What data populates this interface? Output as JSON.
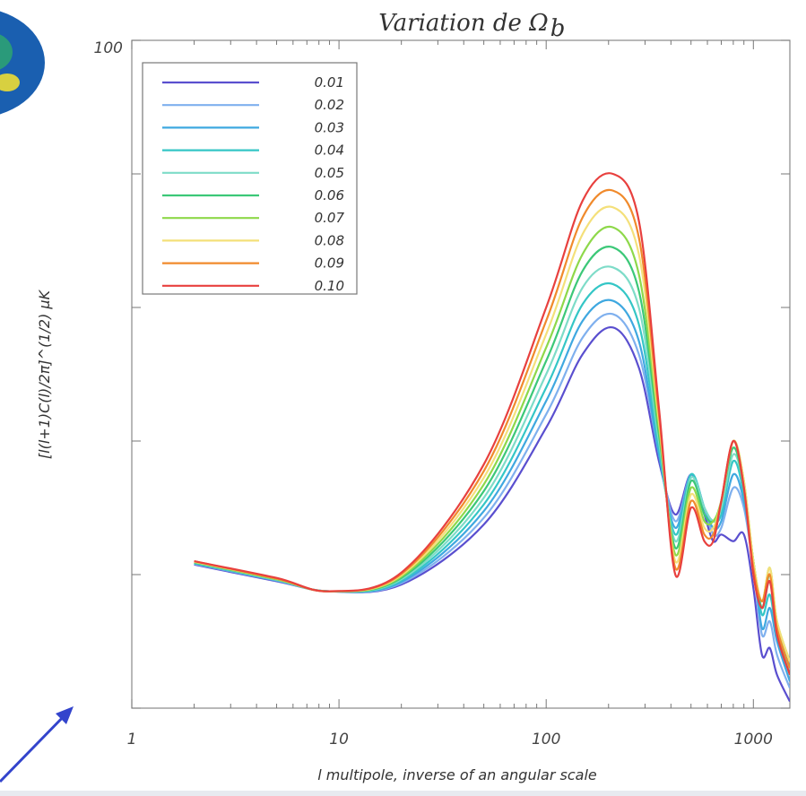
{
  "chart_data": {
    "type": "line",
    "title": "Variation de Ω",
    "title_subscript": "b",
    "xlabel": "l  multipole, inverse of an angular scale",
    "ylabel": "[l(l+1)C(l)/2π]^(1/2)  μK",
    "x_scale": "log",
    "xlim": [
      1,
      1500
    ],
    "ylim": [
      0,
      100
    ],
    "x_tick_labels": [
      "1",
      "10",
      "100",
      "1000"
    ],
    "x_tick_values": [
      1,
      10,
      100,
      1000
    ],
    "y_tick_labels": [
      "100"
    ],
    "y_tick_values": [
      100
    ],
    "grid": false,
    "legend_position": "top-left",
    "series": [
      {
        "name": "0.01",
        "color": "#5a4fcf",
        "x": [
          2,
          5,
          9,
          20,
          50,
          100,
          150,
          210,
          280,
          350,
          420,
          500,
          580,
          640,
          700,
          800,
          900,
          1000,
          1100,
          1200,
          1300,
          1500
        ],
        "y": [
          21.5,
          19,
          17.5,
          18.5,
          27.5,
          42,
          53,
          57,
          51,
          37,
          29,
          35,
          29,
          25,
          26,
          25,
          26,
          18,
          8,
          9,
          5,
          1
        ]
      },
      {
        "name": "0.02",
        "color": "#7fb0ee",
        "x": [
          2,
          5,
          9,
          20,
          50,
          100,
          150,
          210,
          280,
          350,
          420,
          500,
          580,
          640,
          700,
          800,
          900,
          1000,
          1100,
          1200,
          1300,
          1500
        ],
        "y": [
          21.6,
          19.1,
          17.5,
          18.7,
          28.5,
          44,
          55.5,
          59,
          53,
          38,
          28,
          35,
          30,
          26,
          27,
          33,
          30,
          21,
          11,
          13,
          8,
          3
        ]
      },
      {
        "name": "0.03",
        "color": "#3fa8e0",
        "x": [
          2,
          5,
          9,
          20,
          50,
          100,
          150,
          210,
          280,
          350,
          420,
          500,
          580,
          640,
          700,
          800,
          900,
          1000,
          1100,
          1200,
          1300,
          1500
        ],
        "y": [
          21.7,
          19.1,
          17.5,
          18.9,
          29.5,
          46,
          58,
          61,
          55,
          38,
          27,
          35,
          30,
          27,
          28,
          35,
          31,
          22,
          12,
          15,
          10,
          4
        ]
      },
      {
        "name": "0.04",
        "color": "#34c6c6",
        "x": [
          2,
          5,
          9,
          20,
          50,
          100,
          150,
          210,
          280,
          350,
          420,
          500,
          580,
          640,
          700,
          800,
          900,
          1000,
          1100,
          1200,
          1300,
          1500
        ],
        "y": [
          21.7,
          19.2,
          17.5,
          19.1,
          30.5,
          48,
          60.5,
          63.5,
          57.5,
          39,
          26,
          35,
          30,
          28,
          29,
          37,
          32,
          22,
          14,
          17,
          11,
          5
        ]
      },
      {
        "name": "0.05",
        "color": "#7edcc8",
        "x": [
          2,
          5,
          9,
          20,
          50,
          100,
          150,
          210,
          280,
          350,
          420,
          500,
          580,
          640,
          700,
          800,
          900,
          1000,
          1100,
          1200,
          1300,
          1500
        ],
        "y": [
          21.8,
          19.2,
          17.5,
          19.3,
          31.5,
          50,
          63,
          66,
          60,
          40,
          25,
          34.5,
          30,
          28,
          30,
          38,
          33,
          22,
          15,
          19,
          12,
          6
        ]
      },
      {
        "name": "0.06",
        "color": "#3cc878",
        "x": [
          2,
          5,
          9,
          20,
          50,
          100,
          150,
          210,
          280,
          350,
          420,
          500,
          580,
          640,
          700,
          800,
          900,
          1000,
          1100,
          1200,
          1300,
          1500
        ],
        "y": [
          21.8,
          19.3,
          17.5,
          19.5,
          32.5,
          52,
          65.5,
          69,
          62.5,
          41,
          24,
          34,
          29,
          28,
          31,
          39,
          33,
          22,
          15,
          20,
          12,
          6
        ]
      },
      {
        "name": "0.07",
        "color": "#8ed84a",
        "x": [
          2,
          5,
          9,
          20,
          50,
          100,
          150,
          210,
          280,
          350,
          420,
          500,
          580,
          640,
          700,
          800,
          900,
          1000,
          1100,
          1200,
          1300,
          1500
        ],
        "y": [
          21.9,
          19.3,
          17.5,
          19.7,
          33.5,
          54,
          68,
          72,
          65,
          42,
          23,
          33,
          28,
          28,
          31,
          40,
          34,
          22,
          16,
          21,
          13,
          7
        ]
      },
      {
        "name": "0.08",
        "color": "#f4e07a",
        "x": [
          2,
          5,
          9,
          20,
          50,
          100,
          150,
          210,
          280,
          350,
          420,
          500,
          580,
          640,
          700,
          800,
          900,
          1000,
          1100,
          1200,
          1300,
          1500
        ],
        "y": [
          21.9,
          19.4,
          17.5,
          19.9,
          34.5,
          56,
          71,
          75,
          68,
          43,
          22,
          32,
          27,
          27,
          31,
          40,
          34,
          22,
          16,
          21,
          13,
          7
        ]
      },
      {
        "name": "0.09",
        "color": "#f08a2c",
        "x": [
          2,
          5,
          9,
          20,
          50,
          100,
          150,
          210,
          280,
          350,
          420,
          500,
          580,
          640,
          700,
          800,
          900,
          1000,
          1100,
          1200,
          1300,
          1500
        ],
        "y": [
          22,
          19.4,
          17.5,
          20.1,
          35.5,
          58,
          73.5,
          77.5,
          70.5,
          44,
          21,
          31,
          26,
          26,
          31,
          40,
          33,
          21,
          16,
          20,
          12,
          6
        ]
      },
      {
        "name": "0.10",
        "color": "#e8403e",
        "x": [
          2,
          5,
          9,
          20,
          50,
          100,
          150,
          210,
          280,
          350,
          420,
          500,
          580,
          640,
          700,
          800,
          900,
          1000,
          1100,
          1200,
          1300,
          1500
        ],
        "y": [
          22,
          19.5,
          17.5,
          20.3,
          36.5,
          60,
          76,
          80,
          73,
          45,
          20,
          30,
          25,
          25,
          31,
          40,
          33,
          20,
          15,
          19,
          11,
          5
        ]
      }
    ]
  },
  "decor": {
    "arrow_color": "#3344cc",
    "globe_colors": [
      "#1a5fb0",
      "#2a9a7a",
      "#d8d040"
    ]
  }
}
